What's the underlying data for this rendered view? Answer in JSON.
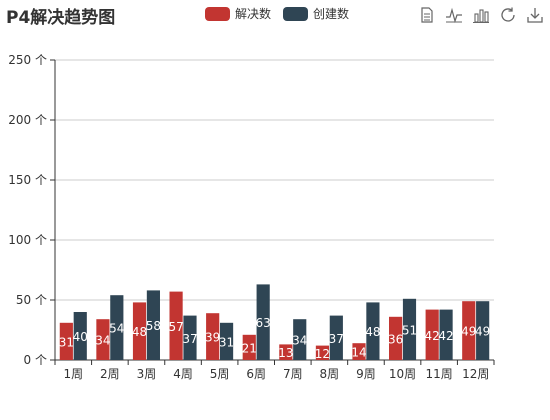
{
  "title": "P4解决趋势图",
  "legend": [
    {
      "name": "解决数",
      "color": "#c23531"
    },
    {
      "name": "创建数",
      "color": "#2f4554"
    }
  ],
  "toolbox": [
    "data-view-icon",
    "line-chart-icon",
    "bar-chart-icon",
    "refresh-icon",
    "download-icon"
  ],
  "chart_data": {
    "type": "bar",
    "title": "P4解决趋势图",
    "categories": [
      "1周",
      "2周",
      "3周",
      "4周",
      "5周",
      "6周",
      "7周",
      "8周",
      "9周",
      "10周",
      "11周",
      "12周"
    ],
    "series": [
      {
        "name": "解决数",
        "color": "#c23531",
        "values": [
          31,
          34,
          48,
          57,
          39,
          21,
          13,
          12,
          14,
          36,
          42,
          49
        ]
      },
      {
        "name": "创建数",
        "color": "#2f4554",
        "values": [
          40,
          54,
          58,
          37,
          31,
          63,
          34,
          37,
          48,
          51,
          42,
          49
        ]
      }
    ],
    "ylim": [
      0,
      250
    ],
    "yticks": [
      0,
      50,
      100,
      150,
      200,
      250
    ],
    "ytick_labels": [
      "0 个",
      "50 个",
      "100 个",
      "150 个",
      "200 个",
      "250 个"
    ],
    "grid": true,
    "legend_position": "top-center"
  }
}
